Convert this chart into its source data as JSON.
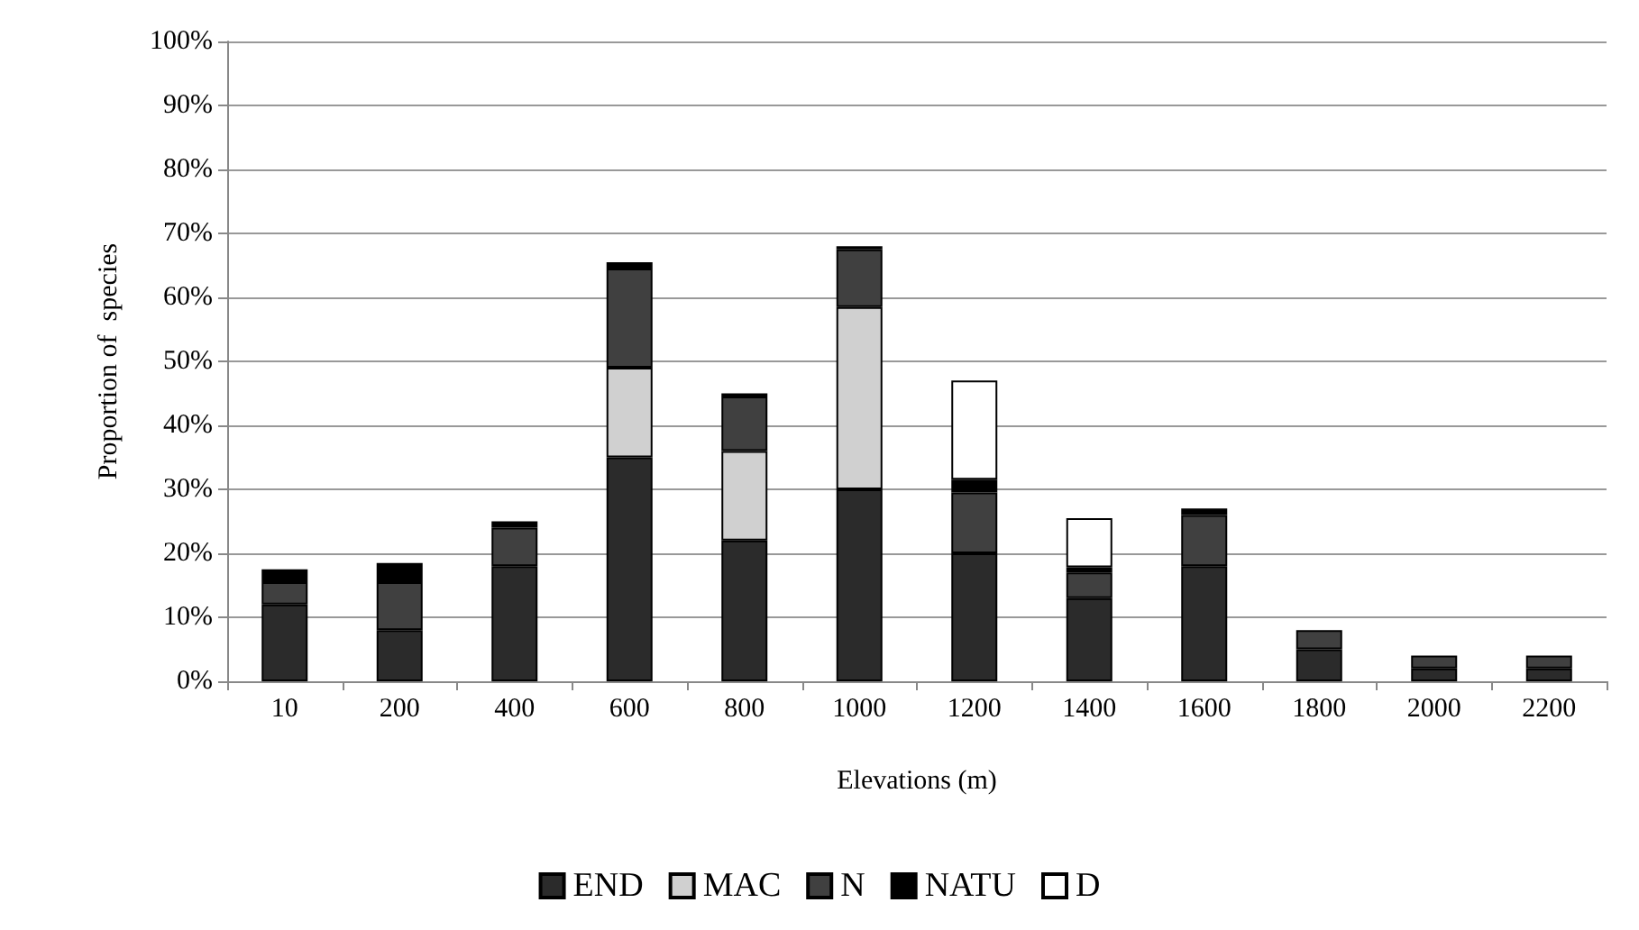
{
  "chart_data": {
    "type": "bar",
    "stacked": true,
    "xlabel": "Elevations (m)",
    "ylabel": "Proportion of  species",
    "categories": [
      "10",
      "200",
      "400",
      "600",
      "800",
      "1000",
      "1200",
      "1400",
      "1600",
      "1800",
      "2000",
      "2200"
    ],
    "series": [
      {
        "name": "END",
        "color": "#2b2b2b",
        "values": [
          12,
          8,
          18,
          35,
          22,
          30,
          20,
          13,
          18,
          5,
          2,
          2
        ]
      },
      {
        "name": "MAC",
        "color": "#d0d0d0",
        "values": [
          null,
          null,
          null,
          14,
          14,
          28.5,
          null,
          null,
          null,
          null,
          null,
          null
        ]
      },
      {
        "name": "N",
        "color": "#404040",
        "values": [
          3.5,
          7.5,
          6,
          15.5,
          8.5,
          9,
          9.5,
          4,
          8,
          3,
          2,
          2
        ]
      },
      {
        "name": "NATU",
        "color": "#000000",
        "values": [
          2,
          3,
          1,
          1,
          0.5,
          0.5,
          2,
          0.8,
          1,
          null,
          null,
          null
        ]
      },
      {
        "name": "D",
        "color": "#ffffff",
        "values": [
          null,
          null,
          null,
          null,
          null,
          null,
          15.5,
          7.7,
          null,
          null,
          null,
          null
        ]
      }
    ],
    "ylim": [
      0,
      100
    ],
    "yticks": [
      {
        "value": 0,
        "label": "0%"
      },
      {
        "value": 10,
        "label": "10%"
      },
      {
        "value": 20,
        "label": "20%"
      },
      {
        "value": 30,
        "label": "30%"
      },
      {
        "value": 40,
        "label": "40%"
      },
      {
        "value": 50,
        "label": "50%"
      },
      {
        "value": 60,
        "label": "60%"
      },
      {
        "value": 70,
        "label": "70%"
      },
      {
        "value": 80,
        "label": "80%"
      },
      {
        "value": 90,
        "label": "90%"
      },
      {
        "value": 100,
        "label": "100%"
      }
    ],
    "grid": "y",
    "legend": "bottom"
  }
}
